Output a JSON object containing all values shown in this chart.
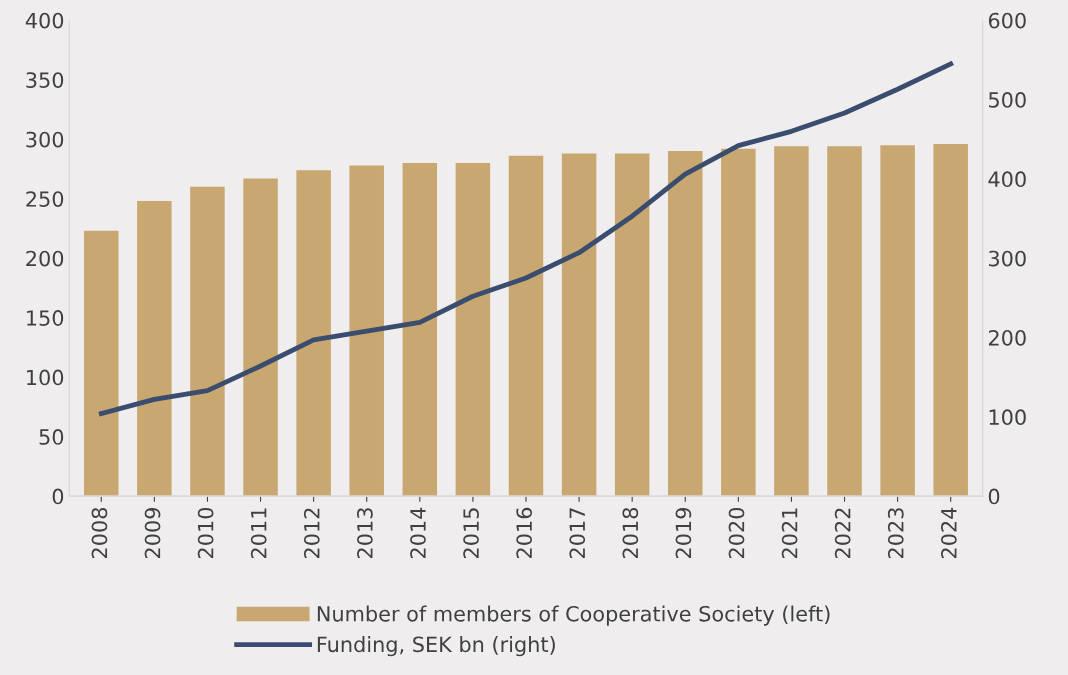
{
  "chart_data": {
    "type": "bar",
    "categories": [
      "2008",
      "2009",
      "2010",
      "2011",
      "2012",
      "2013",
      "2014",
      "2015",
      "2016",
      "2017",
      "2018",
      "2019",
      "2020",
      "2021",
      "2022",
      "2023",
      "2024"
    ],
    "series": [
      {
        "name": "Number of members of Cooperative Society (left)",
        "color": "#c9a771",
        "values": [
          223,
          248,
          260,
          267,
          274,
          278,
          280,
          280,
          286,
          288,
          288,
          290,
          292,
          294,
          294,
          295,
          296
        ]
      },
      {
        "name": "Funding, SEK bn (right)",
        "color": "#3b4d6e",
        "type": "line",
        "axis": "y2",
        "marker": "none",
        "line_style": "solid",
        "values": [
          104,
          122,
          133,
          164,
          197,
          208,
          219,
          252,
          275,
          307,
          353,
          406,
          442,
          460,
          483,
          513,
          545
        ]
      }
    ],
    "ylim": [
      0,
      400
    ],
    "yticks": [
      0,
      50,
      100,
      150,
      200,
      250,
      300,
      350,
      400
    ],
    "y2lim": [
      0,
      600
    ],
    "y2ticks": [
      0,
      100,
      200,
      300,
      400,
      500,
      600
    ],
    "grid": false,
    "legend": "bottom"
  }
}
